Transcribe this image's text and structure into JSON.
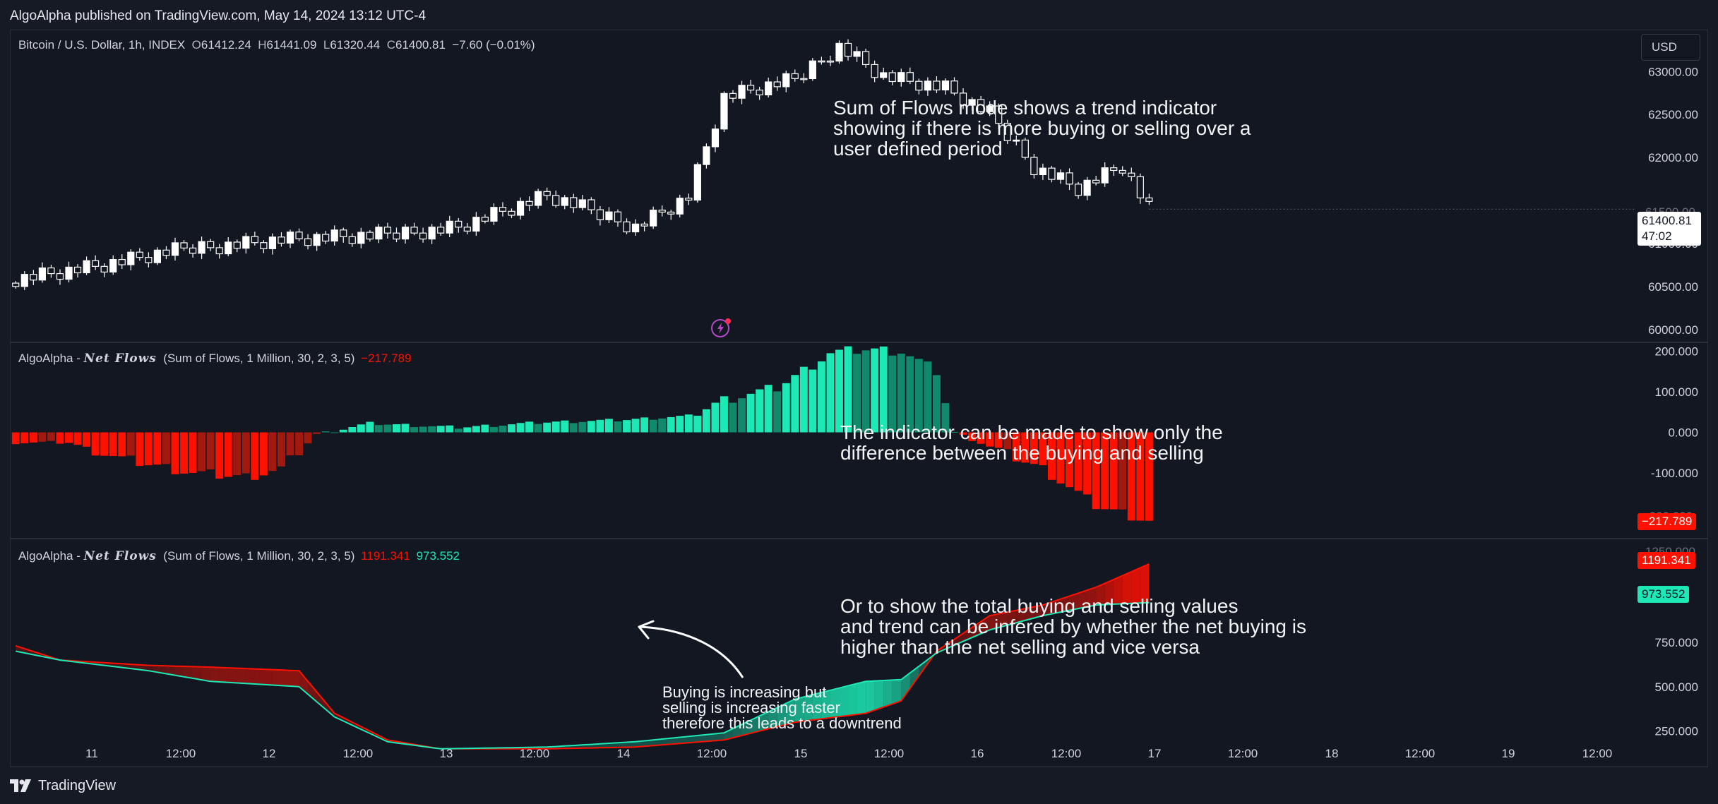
{
  "header": {
    "published_line": "AlgoAlpha published on TradingView.com, May 14, 2024 13:12 UTC-4"
  },
  "footer": {
    "brand": "TradingView"
  },
  "currency_button": "USD",
  "price_pane": {
    "symbol": "Bitcoin / U.S. Dollar, 1h, INDEX",
    "o_label": "O",
    "o": "61412.24",
    "h_label": "H",
    "h": "61441.09",
    "l_label": "L",
    "l": "61320.44",
    "c_label": "C",
    "c": "61400.81",
    "change": "−7.60 (−0.01%)",
    "last_price_tag": "61400.81",
    "countdown": "47:02",
    "partial_label": "61500.00"
  },
  "net_pane": {
    "title_prefix": "AlgoAlpha - ",
    "title_script": "Net Flows",
    "params": "(Sum of Flows, 1 Million, 30, 2, 3, 5)",
    "value": "−217.789",
    "tag": "−217.789",
    "partial_label": "-200.000"
  },
  "sum_pane": {
    "title_prefix": "AlgoAlpha - ",
    "title_script": "Net Flows",
    "params": "(Sum of Flows, 1 Million, 30, 2, 3, 5)",
    "sell_value": "1191.341",
    "buy_value": "973.552",
    "sell_tag": "1191.341",
    "buy_tag": "973.552",
    "partial_label": "1250.000"
  },
  "annotations": {
    "a1": "Sum of Flows mode shows a trend indicator\nshowing if there is more buying or selling over a\nuser defined period",
    "a2": "The indicator can be made to show only the\ndifference between the buying and selling",
    "a3": "Or to show the total buying and selling values\nand trend can be infered by whether the net buying is\nhigher than the net selling and vice versa",
    "a4": "Buying is increasing but\nselling is increasing faster\ntherefore this leads to a downtrend"
  },
  "colors": {
    "background": "#131722",
    "up_candle": "#ffffff",
    "down_candle": "#ffffff",
    "positive_flow": "#1de9b6",
    "negative_flow": "#ff1100",
    "sell_line": "#ff1100",
    "buy_line": "#1de9b6"
  },
  "chart_data": [
    {
      "type": "candlestick",
      "title": "Bitcoin / U.S. Dollar, 1h, INDEX",
      "y_ticks": [
        "63000.00",
        "62500.00",
        "62000.00",
        "61000.00",
        "60500.00",
        "60000.00"
      ],
      "y_tick_values": [
        63000,
        62500,
        62000,
        61000,
        60500,
        60000
      ],
      "ylim": [
        59860,
        63470
      ],
      "x_ticks": [
        "11",
        "12:00",
        "12",
        "12:00",
        "13",
        "12:00",
        "14",
        "12:00",
        "15",
        "12:00",
        "16",
        "12:00",
        "17",
        "12:00",
        "18",
        "12:00",
        "19",
        "12:00"
      ],
      "close_path": [
        {
          "bar": 0,
          "close": 60600
        },
        {
          "bar": 10,
          "close": 60750
        },
        {
          "bar": 20,
          "close": 60950
        },
        {
          "bar": 30,
          "close": 61050
        },
        {
          "bar": 40,
          "close": 61080
        },
        {
          "bar": 50,
          "close": 61200
        },
        {
          "bar": 60,
          "close": 61550
        },
        {
          "bar": 70,
          "close": 61200
        },
        {
          "bar": 76,
          "close": 61550
        },
        {
          "bar": 80,
          "close": 62700
        },
        {
          "bar": 88,
          "close": 62900
        },
        {
          "bar": 93,
          "close": 63300
        },
        {
          "bar": 98,
          "close": 62950
        },
        {
          "bar": 105,
          "close": 62800
        },
        {
          "bar": 110,
          "close": 62500
        },
        {
          "bar": 115,
          "close": 61900
        },
        {
          "bar": 120,
          "close": 61650
        },
        {
          "bar": 125,
          "close": 61900
        },
        {
          "bar": 128,
          "close": 61400
        }
      ],
      "last": 61400.81
    },
    {
      "type": "bar",
      "title": "AlgoAlpha - Net Flows (Sum of Flows, 1 Million, 30, 2, 3, 5)",
      "y_ticks": [
        "200.000",
        "100.000",
        "0.000",
        "-100.000"
      ],
      "y_tick_values": [
        200,
        100,
        0,
        -100
      ],
      "ylim": [
        -260,
        220
      ],
      "series_path": [
        {
          "bar": 0,
          "value": -25
        },
        {
          "bar": 6,
          "value": -25
        },
        {
          "bar": 12,
          "value": -65
        },
        {
          "bar": 20,
          "value": -100
        },
        {
          "bar": 26,
          "value": -110
        },
        {
          "bar": 30,
          "value": -90
        },
        {
          "bar": 34,
          "value": -5
        },
        {
          "bar": 40,
          "value": 22
        },
        {
          "bar": 50,
          "value": 12
        },
        {
          "bar": 60,
          "value": 25
        },
        {
          "bar": 68,
          "value": 30
        },
        {
          "bar": 76,
          "value": 40
        },
        {
          "bar": 80,
          "value": 80
        },
        {
          "bar": 86,
          "value": 110
        },
        {
          "bar": 92,
          "value": 195
        },
        {
          "bar": 96,
          "value": 205
        },
        {
          "bar": 100,
          "value": 200
        },
        {
          "bar": 104,
          "value": 150
        },
        {
          "bar": 106,
          "value": 0
        },
        {
          "bar": 110,
          "value": -35
        },
        {
          "bar": 116,
          "value": -90
        },
        {
          "bar": 122,
          "value": -180
        },
        {
          "bar": 128,
          "value": -217.789
        }
      ],
      "last": -217.789
    },
    {
      "type": "line",
      "title": "AlgoAlpha - Net Flows (Sum of Flows, 1 Million, 30, 2, 3, 5)",
      "y_ticks": [
        "750.000",
        "500.000",
        "250.000"
      ],
      "y_tick_values": [
        750,
        500,
        250
      ],
      "ylim": [
        50,
        1330
      ],
      "series": [
        {
          "name": "selling",
          "points": [
            {
              "bar": 0,
              "value": 730
            },
            {
              "bar": 5,
              "value": 650
            },
            {
              "bar": 15,
              "value": 620
            },
            {
              "bar": 22,
              "value": 610
            },
            {
              "bar": 32,
              "value": 590
            },
            {
              "bar": 36,
              "value": 350
            },
            {
              "bar": 42,
              "value": 200
            },
            {
              "bar": 48,
              "value": 150
            },
            {
              "bar": 60,
              "value": 150
            },
            {
              "bar": 70,
              "value": 160
            },
            {
              "bar": 80,
              "value": 200
            },
            {
              "bar": 88,
              "value": 300
            },
            {
              "bar": 96,
              "value": 350
            },
            {
              "bar": 100,
              "value": 420
            },
            {
              "bar": 104,
              "value": 700
            },
            {
              "bar": 110,
              "value": 900
            },
            {
              "bar": 116,
              "value": 960
            },
            {
              "bar": 122,
              "value": 1060
            },
            {
              "bar": 128,
              "value": 1191.341
            }
          ]
        },
        {
          "name": "buying",
          "points": [
            {
              "bar": 0,
              "value": 700
            },
            {
              "bar": 5,
              "value": 650
            },
            {
              "bar": 15,
              "value": 590
            },
            {
              "bar": 22,
              "value": 530
            },
            {
              "bar": 32,
              "value": 500
            },
            {
              "bar": 36,
              "value": 330
            },
            {
              "bar": 42,
              "value": 190
            },
            {
              "bar": 48,
              "value": 150
            },
            {
              "bar": 60,
              "value": 160
            },
            {
              "bar": 70,
              "value": 190
            },
            {
              "bar": 80,
              "value": 240
            },
            {
              "bar": 88,
              "value": 430
            },
            {
              "bar": 96,
              "value": 530
            },
            {
              "bar": 100,
              "value": 540
            },
            {
              "bar": 104,
              "value": 690
            },
            {
              "bar": 110,
              "value": 820
            },
            {
              "bar": 116,
              "value": 900
            },
            {
              "bar": 122,
              "value": 960
            },
            {
              "bar": 128,
              "value": 973.552
            }
          ]
        }
      ]
    }
  ]
}
